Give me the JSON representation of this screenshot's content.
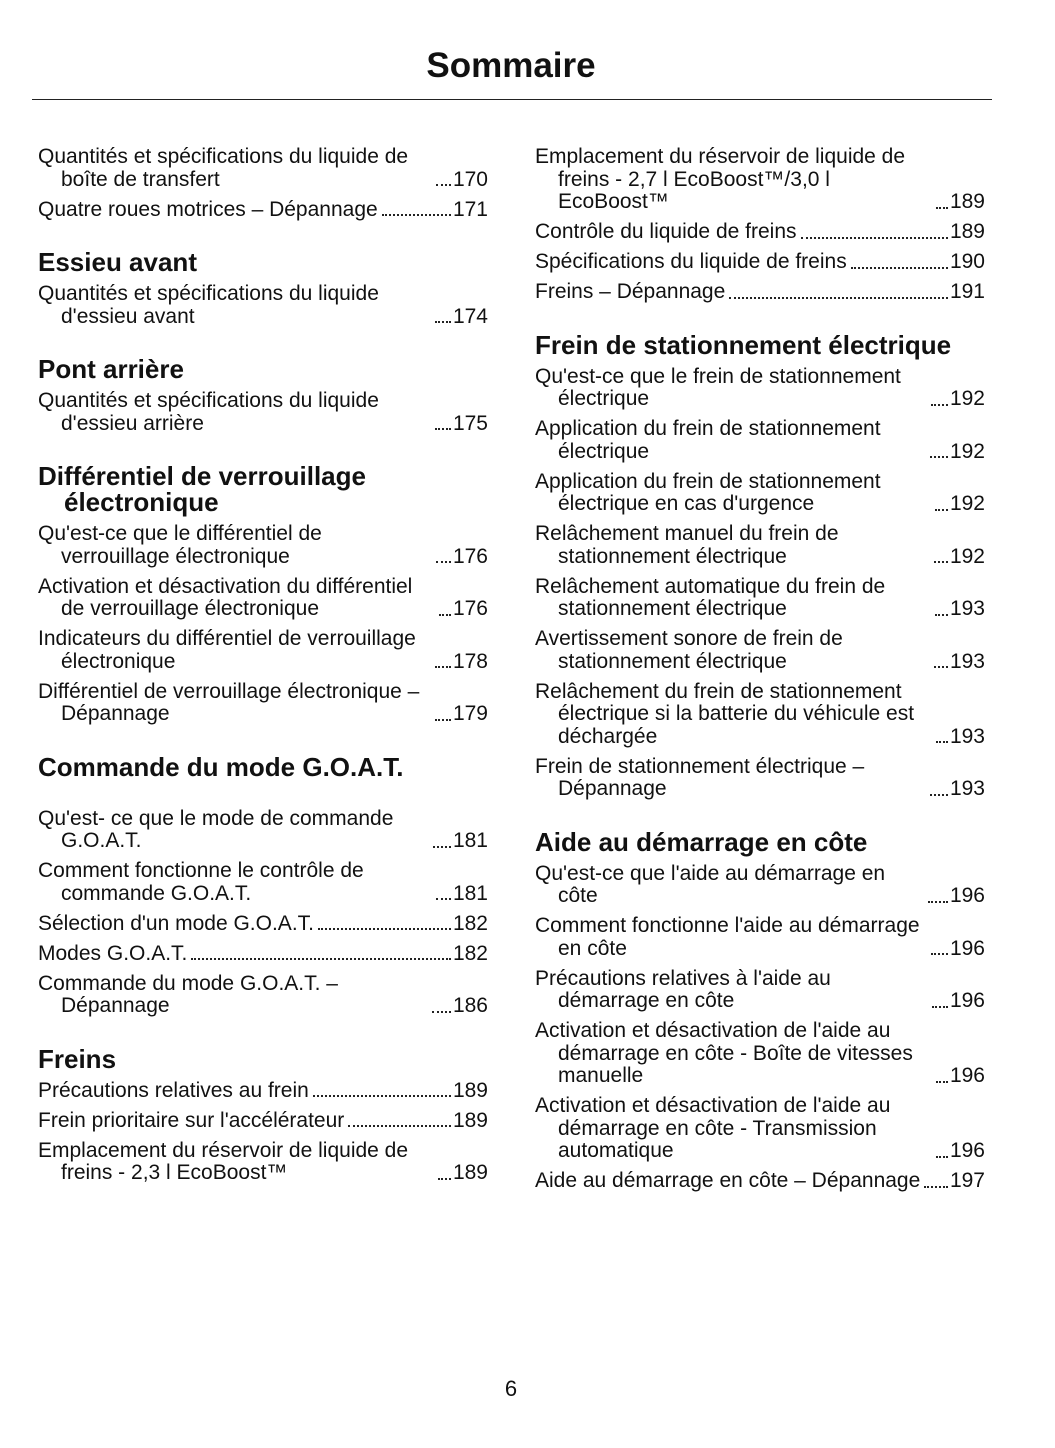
{
  "header": {
    "title": "Sommaire"
  },
  "columns": [
    [
      {
        "entries": [
          {
            "text": "Quantités et spécifications du liquide de boîte de transfert",
            "page": 170
          },
          {
            "text": "Quatre roues motrices – Dépannage",
            "page": 171
          }
        ]
      },
      {
        "heading": "Essieu avant",
        "entries": [
          {
            "text": "Quantités et spécifications du liquide d'essieu avant",
            "page": 174
          }
        ]
      },
      {
        "heading": "Pont arrière",
        "entries": [
          {
            "text": "Quantités et spécifications du liquide d'essieu arrière",
            "page": 175
          }
        ]
      },
      {
        "heading": "Différentiel de verrouillage électronique",
        "entries": [
          {
            "text": "Qu'est-ce que le différentiel de verrouillage électronique",
            "page": 176
          },
          {
            "text": "Activation et désactivation du différentiel de verrouillage électronique",
            "page": 176
          },
          {
            "text": "Indicateurs du différentiel de verrouillage électronique",
            "page": 178
          },
          {
            "text": "Différentiel de verrouillage électronique – Dépannage",
            "page": 179
          }
        ]
      },
      {
        "heading": "Commande du mode G.O.A.T.",
        "entries": [
          {
            "text": "Qu'est- ce que le mode de commande G.O.A.T.",
            "page": 181
          },
          {
            "text": "Comment fonctionne le contrôle de commande G.O.A.T.",
            "page": 181
          },
          {
            "text": "Sélection d'un mode G.O.A.T.",
            "page": 182
          },
          {
            "text": "Modes G.O.A.T.",
            "page": 182
          },
          {
            "text": "Commande du mode G.O.A.T. – Dépannage",
            "page": 186
          }
        ]
      },
      {
        "heading": "Freins",
        "entries": [
          {
            "text": "Précautions relatives au frein",
            "page": 189
          },
          {
            "text": "Frein prioritaire sur l'accélérateur",
            "page": 189
          },
          {
            "text": "Emplacement du réservoir de liquide de freins - 2,3 l EcoBoost™",
            "page": 189
          }
        ]
      }
    ],
    [
      {
        "entries": [
          {
            "text": "Emplacement du réservoir de liquide de freins - 2,7 l EcoBoost™/3,0 l EcoBoost™",
            "page": 189
          },
          {
            "text": "Contrôle du liquide de freins",
            "page": 189
          },
          {
            "text": "Spécifications du liquide de freins",
            "page": 190
          },
          {
            "text": "Freins – Dépannage",
            "page": 191
          }
        ]
      },
      {
        "heading": "Frein de stationnement électrique",
        "entries": [
          {
            "text": "Qu'est-ce que le frein de stationnement électrique",
            "page": 192
          },
          {
            "text": "Application du frein de stationnement électrique",
            "page": 192
          },
          {
            "text": "Application du frein de stationnement électrique en cas d'urgence",
            "page": 192
          },
          {
            "text": "Relâchement manuel du frein de stationnement électrique",
            "page": 192
          },
          {
            "text": "Relâchement automatique du frein de stationnement électrique",
            "page": 193
          },
          {
            "text": "Avertissement sonore de frein de stationnement électrique",
            "page": 193
          },
          {
            "text": "Relâchement du frein de stationnement électrique si la batterie du véhicule est déchargée",
            "page": 193
          },
          {
            "text": "Frein de stationnement électrique – Dépannage",
            "page": 193
          }
        ]
      },
      {
        "heading": "Aide au démarrage en côte",
        "entries": [
          {
            "text": "Qu'est-ce que l'aide au démarrage en côte",
            "page": 196
          },
          {
            "text": "Comment fonctionne l'aide au démarrage en côte",
            "page": 196
          },
          {
            "text": "Précautions relatives à l'aide au démarrage en côte",
            "page": 196
          },
          {
            "text": "Activation et désactivation de l'aide au démarrage en côte - Boîte de vitesses manuelle",
            "page": 196
          },
          {
            "text": "Activation et désactivation de l'aide au démarrage en côte - Transmission automatique",
            "page": 196
          },
          {
            "text": "Aide au démarrage en côte – Dépannage",
            "page": 197
          }
        ]
      }
    ]
  ],
  "footer": {
    "page_number": "6"
  }
}
